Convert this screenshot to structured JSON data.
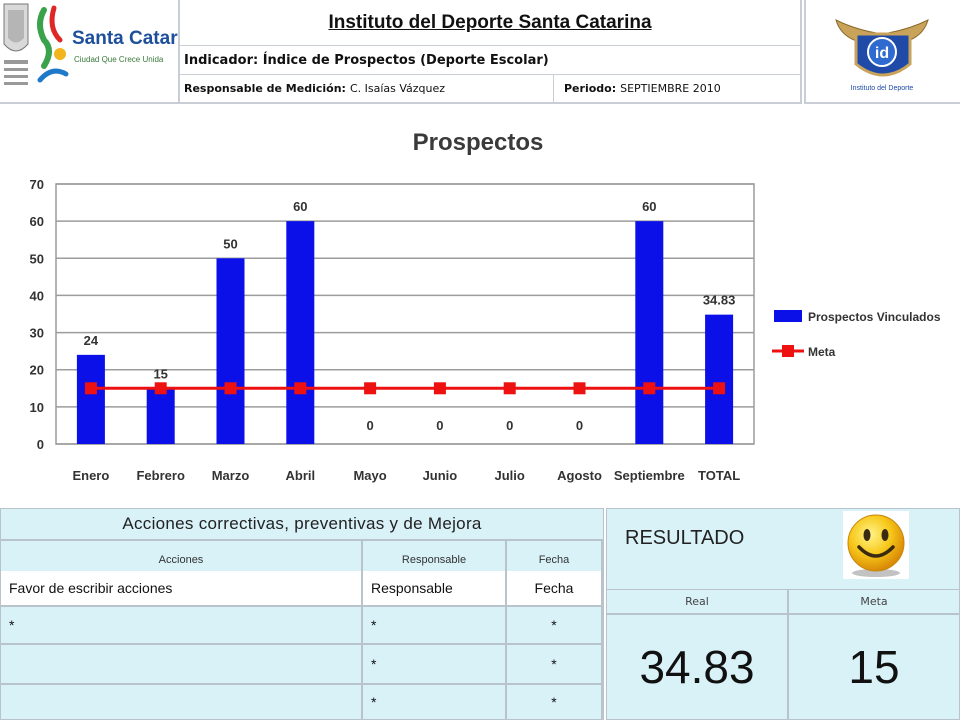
{
  "header": {
    "title": "Instituto del Deporte Santa Catarina",
    "indicator": "Indicador: Índice de Prospectos (Deporte Escolar)",
    "responsable_label": "Responsable de Medición:",
    "responsable_value": "C. Isaías Vázquez",
    "periodo_label": "Periodo:",
    "periodo_value": "SEPTIEMBRE 2010",
    "logo_left_text": "Santa Catarina",
    "logo_left_sub": "Ciudad Que Crece Unida",
    "logo_right_text": "id",
    "logo_right_sub": "Instituto del Deporte"
  },
  "chart_data": {
    "type": "bar",
    "title": "Prospectos",
    "categories": [
      "Enero",
      "Febrero",
      "Marzo",
      "Abril",
      "Mayo",
      "Junio",
      "Julio",
      "Agosto",
      "Septiembre",
      "TOTAL"
    ],
    "series": [
      {
        "name": "Prospectos Vinculados",
        "type": "bar",
        "color": "#0b10e8",
        "values": [
          24,
          15,
          50,
          60,
          0,
          0,
          0,
          0,
          60,
          34.83
        ]
      },
      {
        "name": "Meta",
        "type": "line",
        "color": "#ee1111",
        "values": [
          15,
          15,
          15,
          15,
          15,
          15,
          15,
          15,
          15,
          15
        ]
      }
    ],
    "data_labels": [
      "24",
      "15",
      "50",
      "60",
      "0",
      "0",
      "0",
      "0",
      "60",
      "34.83"
    ],
    "ylim": [
      0,
      70
    ],
    "yticks": [
      0,
      10,
      20,
      30,
      40,
      50,
      60,
      70
    ],
    "grid": true,
    "legend": "right"
  },
  "acciones": {
    "title": "Acciones correctivas, preventivas y de Mejora",
    "headers": [
      "Acciones",
      "Responsable",
      "Fecha"
    ],
    "rows": [
      [
        "Favor de escribir acciones",
        "Responsable",
        "Fecha"
      ],
      [
        "*",
        "*",
        "*"
      ],
      [
        "",
        "*",
        "*"
      ],
      [
        "",
        "*",
        "*"
      ]
    ]
  },
  "resultado": {
    "title": "RESULTADO",
    "real_label": "Real",
    "meta_label": "Meta",
    "real_value": "34.83",
    "meta_value": "15",
    "status_icon": "smiley-face-icon"
  }
}
